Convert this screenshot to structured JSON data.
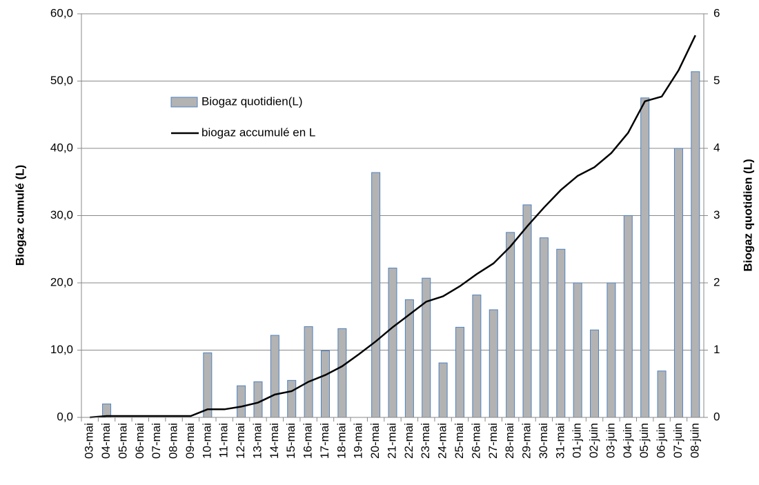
{
  "chart_data": {
    "type": "bar_line",
    "categories": [
      "03-mai",
      "04-mai",
      "05-mai",
      "06-mai",
      "07-mai",
      "08-mai",
      "09-mai",
      "10-mai",
      "11-mai",
      "12-mai",
      "13-mai",
      "14-mai",
      "15-mai",
      "16-mai",
      "17-mai",
      "18-mai",
      "19-mai",
      "20-mai",
      "21-mai",
      "22-mai",
      "23-mai",
      "24-mai",
      "25-mai",
      "26-mai",
      "27-mai",
      "28-mai",
      "29-mai",
      "30-mai",
      "31-mai",
      "01-juin",
      "02-juin",
      "03-juin",
      "04-juin",
      "05-juin",
      "06-juin",
      "07-juin",
      "08-juin"
    ],
    "series": [
      {
        "name": "Biogaz quotidien(L)",
        "type": "bar",
        "axis": "y2",
        "color": "#b3b3b3",
        "edge": "#4f81bd",
        "values": [
          0,
          0.2,
          0,
          0,
          0,
          0,
          0,
          0.96,
          0,
          0.47,
          0.53,
          1.22,
          0.55,
          1.35,
          0.99,
          1.32,
          0,
          3.64,
          2.22,
          1.75,
          2.07,
          0.81,
          1.34,
          1.82,
          1.6,
          2.75,
          3.16,
          2.67,
          2.5,
          2.0,
          1.3,
          2.0,
          3.0,
          4.75,
          0.69,
          4.0,
          5.14
        ]
      },
      {
        "name": "biogaz accumulé en L",
        "type": "line",
        "color": "#000000",
        "values": [
          0,
          0.2,
          0.2,
          0.2,
          0.2,
          0.2,
          0.2,
          1.2,
          1.2,
          1.6,
          2.2,
          3.4,
          3.9,
          5.3,
          6.3,
          7.6,
          9.4,
          11.3,
          13.4,
          15.3,
          17.2,
          18.0,
          19.5,
          21.3,
          22.9,
          25.4,
          28.4,
          31.2,
          33.8,
          35.9,
          37.2,
          39.3,
          42.3,
          47.0,
          47.7,
          51.6,
          56.8
        ]
      }
    ],
    "ylabel": "Biogaz cumulé (L)",
    "y2label": "Biogaz quotidien (L)",
    "ylim": [
      0,
      60
    ],
    "yticks": [
      {
        "value": 0,
        "label": "0,0"
      },
      {
        "value": 10,
        "label": "10,0"
      },
      {
        "value": 20,
        "label": "20,0"
      },
      {
        "value": 30,
        "label": "30,0"
      },
      {
        "value": 40,
        "label": "40,0"
      },
      {
        "value": 50,
        "label": "50,0"
      },
      {
        "value": 60,
        "label": "60,0"
      }
    ],
    "y2lim": [
      0,
      6
    ],
    "y2ticks": [
      0,
      1,
      2,
      3,
      4,
      5,
      6
    ],
    "grid": true
  }
}
